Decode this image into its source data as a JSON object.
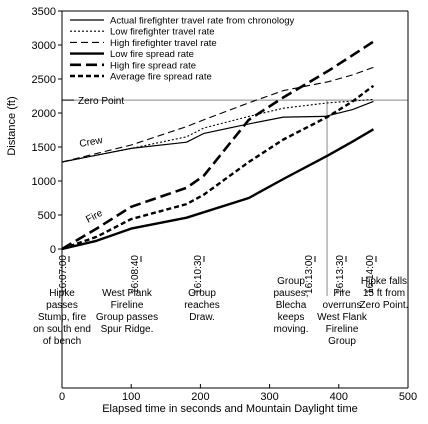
{
  "chart_data": {
    "type": "line",
    "xlabel": "Elapsed time in seconds and Mountain Daylight time",
    "ylabel": "Distance (ft)",
    "xlim": [
      0,
      500
    ],
    "ylim": [
      0,
      3500
    ],
    "x_ticks": [
      0,
      100,
      200,
      300,
      400,
      500
    ],
    "y_ticks": [
      0,
      500,
      1000,
      1500,
      2000,
      2500,
      3000,
      3500
    ],
    "grid": false,
    "legend_position": "top-left",
    "series": [
      {
        "name": "Actual firefighter travel rate from chronology",
        "style": "thin-solid",
        "points": [
          [
            0,
            1280
          ],
          [
            50,
            1380
          ],
          [
            100,
            1480
          ],
          [
            180,
            1570
          ],
          [
            205,
            1700
          ],
          [
            270,
            1840
          ],
          [
            320,
            1940
          ],
          [
            380,
            1950
          ],
          [
            420,
            2050
          ],
          [
            450,
            2170
          ]
        ]
      },
      {
        "name": "Low firefighter travel rate",
        "style": "thin-dotted",
        "points": [
          [
            0,
            1280
          ],
          [
            100,
            1480
          ],
          [
            180,
            1650
          ],
          [
            205,
            1780
          ],
          [
            270,
            1950
          ],
          [
            320,
            2070
          ],
          [
            385,
            2150
          ],
          [
            420,
            2175
          ],
          [
            450,
            2200
          ]
        ]
      },
      {
        "name": "High firefighter travel rate",
        "style": "thin-dashed",
        "points": [
          [
            0,
            1280
          ],
          [
            100,
            1530
          ],
          [
            180,
            1800
          ],
          [
            205,
            1900
          ],
          [
            270,
            2150
          ],
          [
            320,
            2330
          ],
          [
            385,
            2460
          ],
          [
            420,
            2560
          ],
          [
            450,
            2670
          ]
        ]
      },
      {
        "name": "Low fire spread rate",
        "style": "thick-solid",
        "points": [
          [
            0,
            0
          ],
          [
            50,
            120
          ],
          [
            100,
            300
          ],
          [
            180,
            460
          ],
          [
            270,
            750
          ],
          [
            320,
            1030
          ],
          [
            385,
            1380
          ],
          [
            420,
            1580
          ],
          [
            450,
            1760
          ]
        ]
      },
      {
        "name": "High fire spread rate",
        "style": "thick-longdash",
        "points": [
          [
            0,
            0
          ],
          [
            50,
            300
          ],
          [
            100,
            620
          ],
          [
            180,
            900
          ],
          [
            205,
            1080
          ],
          [
            270,
            1900
          ],
          [
            320,
            2230
          ],
          [
            385,
            2620
          ],
          [
            420,
            2850
          ],
          [
            450,
            3050
          ]
        ]
      },
      {
        "name": "Average fire spread rate",
        "style": "thick-shortdash",
        "points": [
          [
            0,
            0
          ],
          [
            50,
            180
          ],
          [
            100,
            440
          ],
          [
            180,
            660
          ],
          [
            205,
            800
          ],
          [
            270,
            1280
          ],
          [
            320,
            1610
          ],
          [
            385,
            1950
          ],
          [
            420,
            2170
          ],
          [
            450,
            2400
          ]
        ]
      }
    ],
    "reference_line": {
      "label": "Zero Point",
      "y": 2190
    },
    "fire_overrun_marker_x": 383,
    "annotations": {
      "crew": "Crew",
      "fire": "Fire"
    },
    "time_markers": [
      {
        "x": 0,
        "time": "16:07:00",
        "event": [
          "Hipke",
          "passes",
          "Stump, fire",
          "on south end",
          "of bench"
        ]
      },
      {
        "x": 100,
        "time": "16:08:40",
        "event": [
          "West Flank",
          "Fireline",
          "Group passes",
          "Spur Ridge."
        ]
      },
      {
        "x": 210,
        "time": "16:10:30",
        "event": [
          "Group",
          "reaches",
          "Draw."
        ]
      },
      {
        "x": 360,
        "time": "16:13:00",
        "event": [
          "Group",
          "pauses,",
          "Blecha",
          "keeps",
          "moving."
        ]
      },
      {
        "x": 390,
        "time": "16:13:30",
        "event": [
          "Fire",
          "overruns",
          "West Flank",
          "Fireline",
          "Group"
        ]
      },
      {
        "x": 420,
        "time": "16:14:00",
        "event": [
          "Hipke falls",
          "15 ft from",
          "Zero Point."
        ]
      }
    ]
  }
}
